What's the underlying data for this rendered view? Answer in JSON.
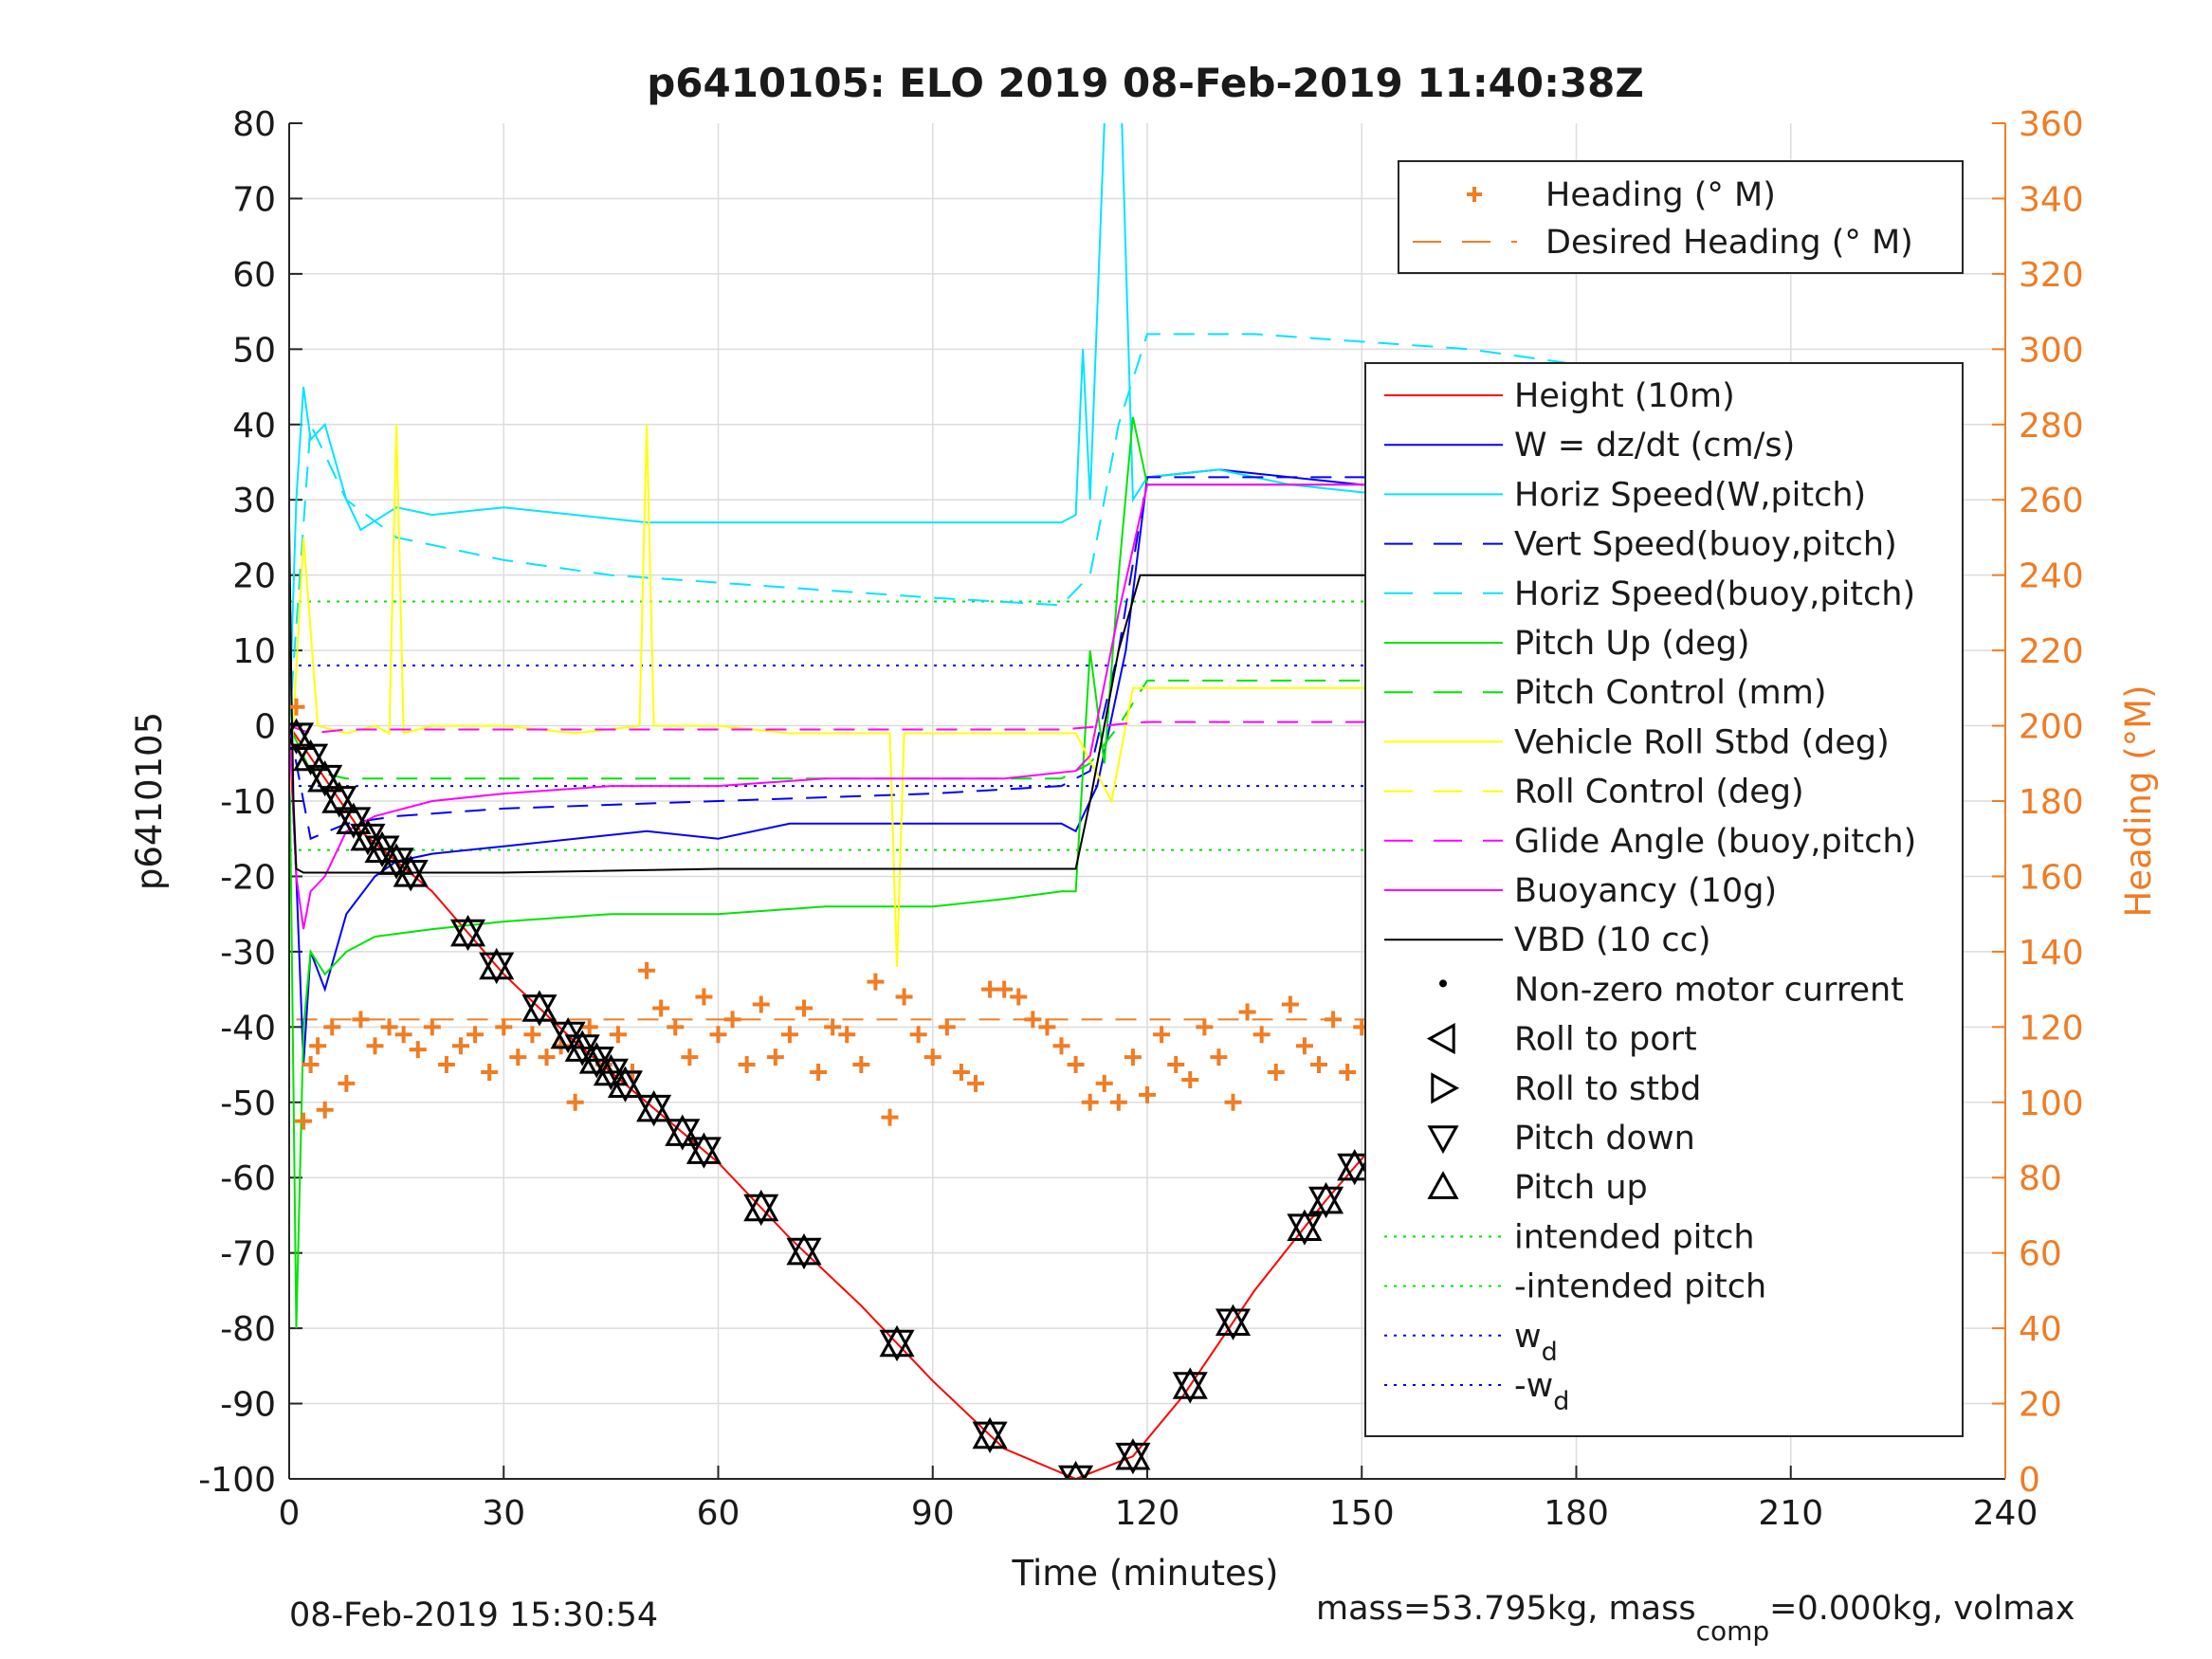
{
  "title": "p6410105: ELO 2019 08-Feb-2019 11:40:38Z",
  "footer_left": "08-Feb-2019 15:30:54",
  "footer_right_prefix": "mass=53.795kg, mass",
  "footer_right_sub": "comp",
  "footer_right_suffix": "=0.000kg, volmax",
  "colors": {
    "height": "#ff0000",
    "w": "#0000ff",
    "hspeed_w": "#00e5ff",
    "vspeed_buoy": "#0000ff",
    "hspeed_buoy": "#00e5ff",
    "pitch_up": "#00e400",
    "pitch_control": "#00e400",
    "roll": "#ffff00",
    "roll_control": "#ffff00",
    "glide_angle": "#ff00ff",
    "buoyancy": "#ff00ff",
    "vbd": "#000000",
    "heading": "#f07c24",
    "intended_pitch": "#00e400",
    "wd": "#0000ff"
  },
  "chart_data": {
    "type": "line",
    "xlabel": "Time (minutes)",
    "ylabel": "p6410105",
    "y2label": "Heading (°M)",
    "xlim": [
      0,
      240
    ],
    "ylim": [
      -100,
      80
    ],
    "y2lim": [
      0,
      360
    ],
    "xticks": [
      "0",
      "30",
      "60",
      "90",
      "120",
      "150",
      "180",
      "210",
      "240"
    ],
    "yticks": [
      "80",
      "70",
      "60",
      "50",
      "40",
      "30",
      "20",
      "10",
      "0",
      "-10",
      "-20",
      "-30",
      "-40",
      "-50",
      "-60",
      "-70",
      "-80",
      "-90",
      "-100"
    ],
    "y2ticks": [
      "360",
      "340",
      "320",
      "300",
      "280",
      "260",
      "240",
      "220",
      "200",
      "180",
      "160",
      "140",
      "120",
      "100",
      "80",
      "60",
      "40",
      "20",
      "0"
    ],
    "grid": true,
    "legend_top": {
      "placement": "top-right",
      "items": [
        {
          "label": "Heading (° M)",
          "style": "plus",
          "color": "#f07c24"
        },
        {
          "label": "Desired Heading (° M)",
          "style": "dash",
          "color": "#f07c24"
        }
      ]
    },
    "legend_main": {
      "placement": "right",
      "items": [
        {
          "label": "Height (10m)",
          "style": "solid",
          "color": "#ff0000"
        },
        {
          "label": "W = dz/dt (cm/s)",
          "style": "solid",
          "color": "#0000ff"
        },
        {
          "label": "Horiz Speed(W,pitch)",
          "style": "solid",
          "color": "#00e5ff"
        },
        {
          "label": "Vert Speed(buoy,pitch)",
          "style": "dash",
          "color": "#0000ff"
        },
        {
          "label": "Horiz Speed(buoy,pitch)",
          "style": "dash",
          "color": "#00e5ff"
        },
        {
          "label": "Pitch Up (deg)",
          "style": "solid",
          "color": "#00e400"
        },
        {
          "label": "Pitch Control (mm)",
          "style": "dash",
          "color": "#00e400"
        },
        {
          "label": "Vehicle Roll Stbd (deg)",
          "style": "solid",
          "color": "#ffff00"
        },
        {
          "label": "Roll Control (deg)",
          "style": "dash",
          "color": "#ffff00"
        },
        {
          "label": "Glide Angle (buoy,pitch)",
          "style": "dash",
          "color": "#ff00ff"
        },
        {
          "label": "Buoyancy (10g)",
          "style": "solid",
          "color": "#ff00ff"
        },
        {
          "label": "VBD (10 cc)",
          "style": "solid",
          "color": "#000000"
        },
        {
          "label": "Non-zero motor current",
          "style": "dot",
          "color": "#000000"
        },
        {
          "label": "Roll to port",
          "style": "tri-left",
          "color": "#000000"
        },
        {
          "label": "Roll to stbd",
          "style": "tri-right",
          "color": "#000000"
        },
        {
          "label": "Pitch down",
          "style": "tri-down",
          "color": "#000000"
        },
        {
          "label": "Pitch up",
          "style": "tri-up",
          "color": "#000000"
        },
        {
          "label": "intended pitch",
          "style": "dotted",
          "color": "#00e400"
        },
        {
          "label": "-intended pitch",
          "style": "dotted",
          "color": "#00e400"
        },
        {
          "label": "w",
          "sub": "d",
          "style": "dotted",
          "color": "#0000ff"
        },
        {
          "label": "-w",
          "sub": "d",
          "style": "dotted",
          "color": "#0000ff"
        }
      ]
    },
    "series": [
      {
        "name": "Height (10m)",
        "color": "#ff0000",
        "x": [
          0,
          5,
          10,
          20,
          30,
          40,
          50,
          60,
          70,
          80,
          90,
          100,
          110,
          118,
          125,
          135,
          145,
          155,
          165,
          175,
          185,
          195,
          205,
          218
        ],
        "y": [
          0,
          -7,
          -14,
          -22,
          -33,
          -42,
          -50,
          -58,
          -68,
          -77,
          -87,
          -96,
          -100,
          -97,
          -89,
          -75,
          -63,
          -52,
          -41,
          -30,
          -19,
          -10,
          -5,
          0
        ]
      },
      {
        "name": "W = dz/dt (cm/s)",
        "color": "#0000ff",
        "x": [
          0,
          1,
          2,
          3,
          5,
          8,
          12,
          15,
          20,
          30,
          40,
          50,
          60,
          70,
          80,
          90,
          100,
          108,
          110,
          113,
          117,
          120,
          130,
          140,
          150,
          160,
          170,
          180,
          190,
          200,
          210,
          215,
          218
        ],
        "y": [
          0,
          -20,
          -45,
          -30,
          -35,
          -25,
          -20,
          -18,
          -17,
          -16,
          -15,
          -14,
          -15,
          -13,
          -13,
          -13,
          -13,
          -13,
          -14,
          -8,
          10,
          33,
          34,
          33,
          32,
          32,
          31,
          30,
          29,
          26,
          15,
          8,
          10
        ]
      },
      {
        "name": "Horiz Speed(W,pitch)",
        "color": "#00e5ff",
        "x": [
          0,
          1,
          2,
          3,
          5,
          8,
          10,
          15,
          20,
          30,
          40,
          50,
          60,
          70,
          80,
          90,
          100,
          108,
          110,
          111,
          112,
          114,
          116,
          118,
          120,
          130,
          140,
          150,
          160,
          170,
          180,
          190,
          200,
          210,
          215,
          218
        ],
        "y": [
          0,
          30,
          45,
          38,
          40,
          30,
          26,
          29,
          28,
          29,
          28,
          27,
          27,
          27,
          27,
          27,
          27,
          27,
          28,
          50,
          30,
          80,
          95,
          30,
          33,
          34,
          32,
          31,
          30,
          30,
          30,
          29,
          27,
          25,
          26,
          35
        ]
      },
      {
        "name": "Vert Speed(buoy,pitch)",
        "color": "#0000ff",
        "dash": "22 14",
        "x": [
          0,
          3,
          8,
          15,
          30,
          60,
          90,
          108,
          112,
          116,
          120,
          150,
          180,
          200,
          210,
          218
        ],
        "y": [
          0,
          -15,
          -13,
          -12,
          -11,
          -10,
          -9,
          -8,
          -6,
          10,
          33,
          33,
          32,
          30,
          27,
          25
        ]
      },
      {
        "name": "Horiz Speed(buoy,pitch)",
        "color": "#00e5ff",
        "dash": "22 14",
        "x": [
          0,
          3,
          8,
          15,
          30,
          45,
          60,
          75,
          90,
          108,
          112,
          116,
          120,
          135,
          150,
          165,
          180,
          195,
          210,
          218
        ],
        "y": [
          0,
          40,
          30,
          25,
          22,
          20,
          19,
          18,
          17,
          16,
          20,
          40,
          52,
          52,
          51,
          50,
          48,
          45,
          38,
          35
        ]
      },
      {
        "name": "Pitch Up (deg)",
        "color": "#00e400",
        "x": [
          0,
          1,
          2,
          3,
          5,
          8,
          12,
          20,
          30,
          45,
          60,
          75,
          90,
          100,
          108,
          110,
          112,
          114,
          116,
          118,
          120,
          130,
          140,
          150,
          160,
          170,
          180,
          190,
          200,
          210,
          218
        ],
        "y": [
          0,
          -80,
          -40,
          -30,
          -33,
          -30,
          -28,
          -27,
          -26,
          -25,
          -25,
          -24,
          -24,
          -23,
          -22,
          -22,
          10,
          -5,
          20,
          41,
          32,
          32,
          32,
          32,
          31,
          31,
          30,
          29,
          27,
          22,
          20
        ]
      },
      {
        "name": "Pitch Control (mm)",
        "color": "#00e400",
        "dash": "22 14",
        "x": [
          0,
          3,
          8,
          30,
          60,
          90,
          108,
          112,
          116,
          120,
          150,
          180,
          210,
          218
        ],
        "y": [
          0,
          -6,
          -7,
          -7,
          -7,
          -7,
          -7,
          -5,
          0,
          6,
          6,
          6,
          6,
          6
        ]
      },
      {
        "name": "Vehicle Roll Stbd (deg)",
        "color": "#ffff00",
        "x": [
          0,
          2,
          4,
          8,
          12,
          14,
          15,
          16,
          20,
          30,
          40,
          49,
          50,
          51,
          60,
          70,
          84,
          85,
          86,
          100,
          110,
          115,
          118,
          120,
          130,
          140,
          150,
          160,
          170,
          180,
          190,
          200,
          205,
          208,
          210,
          215,
          218
        ],
        "y": [
          -10,
          25,
          0,
          -1,
          0,
          -1,
          40,
          -1,
          0,
          0,
          -1,
          0,
          40,
          0,
          0,
          -1,
          -1,
          -32,
          -1,
          -1,
          -1,
          -10,
          5,
          5,
          5,
          5,
          5,
          5,
          5,
          5,
          5,
          5,
          -25,
          15,
          5,
          -20,
          5
        ]
      },
      {
        "name": "Glide Angle (buoy,pitch)",
        "color": "#ff00ff",
        "dash": "22 14",
        "x": [
          0,
          3,
          8,
          30,
          60,
          90,
          108,
          112,
          116,
          120,
          150,
          180,
          210,
          218
        ],
        "y": [
          0,
          -1,
          -0.5,
          -0.5,
          -0.5,
          -0.5,
          -0.5,
          -0.2,
          0.2,
          0.5,
          0.5,
          0.5,
          0.5,
          0.5
        ]
      },
      {
        "name": "Buoyancy (10g)",
        "color": "#ff00ff",
        "x": [
          0,
          1,
          2,
          3,
          5,
          8,
          12,
          20,
          30,
          45,
          60,
          75,
          90,
          100,
          110,
          112,
          116,
          120,
          130,
          150,
          170,
          190,
          200,
          205,
          210,
          215,
          218
        ],
        "y": [
          0,
          -20,
          -27,
          -22,
          -20,
          -14,
          -12,
          -10,
          -9,
          -8,
          -8,
          -7,
          -7,
          -7,
          -6,
          -4,
          15,
          32,
          32,
          32,
          31,
          30,
          28,
          20,
          27,
          32,
          29
        ]
      },
      {
        "name": "VBD (10 cc)",
        "color": "#000000",
        "x": [
          0,
          0.3,
          0.6,
          1,
          2,
          4,
          8,
          20,
          30,
          60,
          90,
          110,
          112,
          116,
          119,
          120,
          130,
          150,
          170,
          190,
          205,
          208,
          212,
          215,
          218
        ],
        "y": [
          27,
          5,
          -10,
          -19,
          -19.5,
          -19.5,
          -19.5,
          -19.5,
          -19.5,
          -19,
          -19,
          -19,
          -10,
          10,
          20,
          20,
          20,
          20,
          20,
          20,
          20,
          30,
          33,
          35,
          35
        ]
      }
    ],
    "heading": {
      "name": "Heading (° M)",
      "color": "#f07c24",
      "x": [
        1,
        2,
        3,
        4,
        5,
        6,
        8,
        10,
        12,
        14,
        16,
        18,
        20,
        22,
        24,
        26,
        28,
        30,
        32,
        34,
        36,
        38,
        40,
        42,
        44,
        46,
        48,
        50,
        52,
        54,
        56,
        58,
        60,
        62,
        64,
        66,
        68,
        70,
        72,
        74,
        76,
        78,
        80,
        82,
        84,
        86,
        88,
        90,
        92,
        94,
        96,
        98,
        100,
        102,
        104,
        106,
        108,
        110,
        112,
        114,
        116,
        118,
        120,
        122,
        124,
        126,
        128,
        130,
        132,
        134,
        136,
        138,
        140,
        142,
        144,
        146,
        148,
        150,
        152,
        154,
        156,
        158,
        160,
        162,
        164,
        166,
        168,
        170,
        172,
        174,
        176,
        178,
        180,
        182,
        184,
        186,
        188,
        190,
        192,
        194,
        196,
        198,
        200,
        202,
        204,
        206,
        208,
        210,
        212,
        214,
        216,
        218
      ],
      "y": [
        205,
        95,
        110,
        115,
        98,
        120,
        105,
        122,
        115,
        120,
        118,
        114,
        120,
        110,
        115,
        118,
        108,
        120,
        112,
        118,
        112,
        115,
        100,
        120,
        110,
        118,
        108,
        135,
        125,
        120,
        112,
        128,
        118,
        122,
        110,
        126,
        112,
        118,
        125,
        108,
        120,
        118,
        110,
        132,
        96,
        128,
        118,
        112,
        120,
        108,
        105,
        130,
        130,
        128,
        122,
        120,
        115,
        110,
        100,
        105,
        100,
        112,
        102,
        118,
        110,
        106,
        120,
        112,
        100,
        124,
        118,
        108,
        126,
        115,
        110,
        122,
        108,
        120,
        118,
        104,
        126,
        112,
        110,
        122,
        118,
        112,
        128,
        118,
        130,
        126,
        120,
        122,
        118,
        125,
        118,
        120,
        112,
        118,
        110,
        120,
        112,
        104,
        118,
        120,
        110,
        128,
        116,
        112,
        122,
        118,
        110,
        115
      ]
    },
    "desired_heading": 122,
    "intended_pitch": 16.5,
    "wd": 8
  }
}
